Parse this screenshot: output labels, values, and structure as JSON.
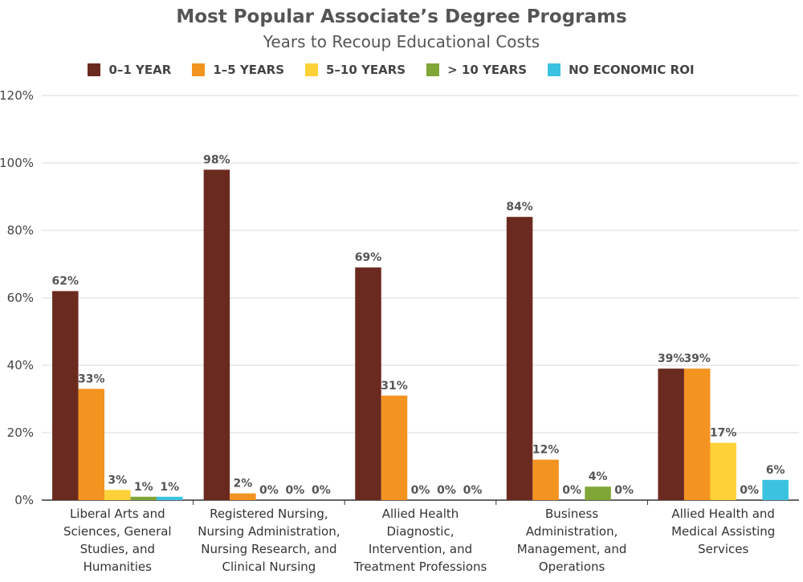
{
  "chart_data": {
    "type": "bar",
    "title": "Most Popular Associate’s Degree Programs",
    "subtitle": "Years to Recoup Educational Costs",
    "xlabel": "",
    "ylabel": "",
    "ylim": [
      0,
      120
    ],
    "yticks": [
      "0%",
      "20%",
      "40%",
      "60%",
      "80%",
      "100%",
      "120%"
    ],
    "ytick_values": [
      0,
      20,
      40,
      60,
      80,
      100,
      120
    ],
    "grid": true,
    "legend_position": "top",
    "categories": [
      [
        "Liberal Arts and",
        "Sciences, General",
        "Studies, and",
        "Humanities"
      ],
      [
        "Registered Nursing,",
        "Nursing Administration,",
        "Nursing Research, and",
        "Clinical Nursing"
      ],
      [
        "Allied Health",
        "Diagnostic,",
        "Intervention, and",
        "Treatment Professions"
      ],
      [
        "Business",
        "Administration,",
        "Management, and",
        "Operations"
      ],
      [
        "Allied Health and",
        "Medical Assisting",
        "Services"
      ]
    ],
    "series": [
      {
        "name": "0–1 YEAR",
        "color": "#6b2a1f",
        "values": [
          62,
          98,
          69,
          84,
          39
        ],
        "labels": [
          "62%",
          "98%",
          "69%",
          "84%",
          "39%"
        ]
      },
      {
        "name": "1–5 YEARS",
        "color": "#f39320",
        "values": [
          33,
          2,
          31,
          12,
          39
        ],
        "labels": [
          "33%",
          "2%",
          "31%",
          "12%",
          "39%"
        ]
      },
      {
        "name": "5–10 YEARS",
        "color": "#fdd137",
        "values": [
          3,
          0,
          0,
          0,
          17
        ],
        "labels": [
          "3%",
          "0%",
          "0%",
          "0%",
          "17%"
        ]
      },
      {
        "name": "> 10 YEARS",
        "color": "#7fa637",
        "values": [
          1,
          0,
          0,
          4,
          0
        ],
        "labels": [
          "1%",
          "0%",
          "0%",
          "4%",
          "0%"
        ]
      },
      {
        "name": "NO ECONOMIC ROI",
        "color": "#3bc2e0",
        "values": [
          1,
          0,
          0,
          0,
          6
        ],
        "labels": [
          "1%",
          "0%",
          "0%",
          "0%",
          "6%"
        ]
      }
    ]
  }
}
